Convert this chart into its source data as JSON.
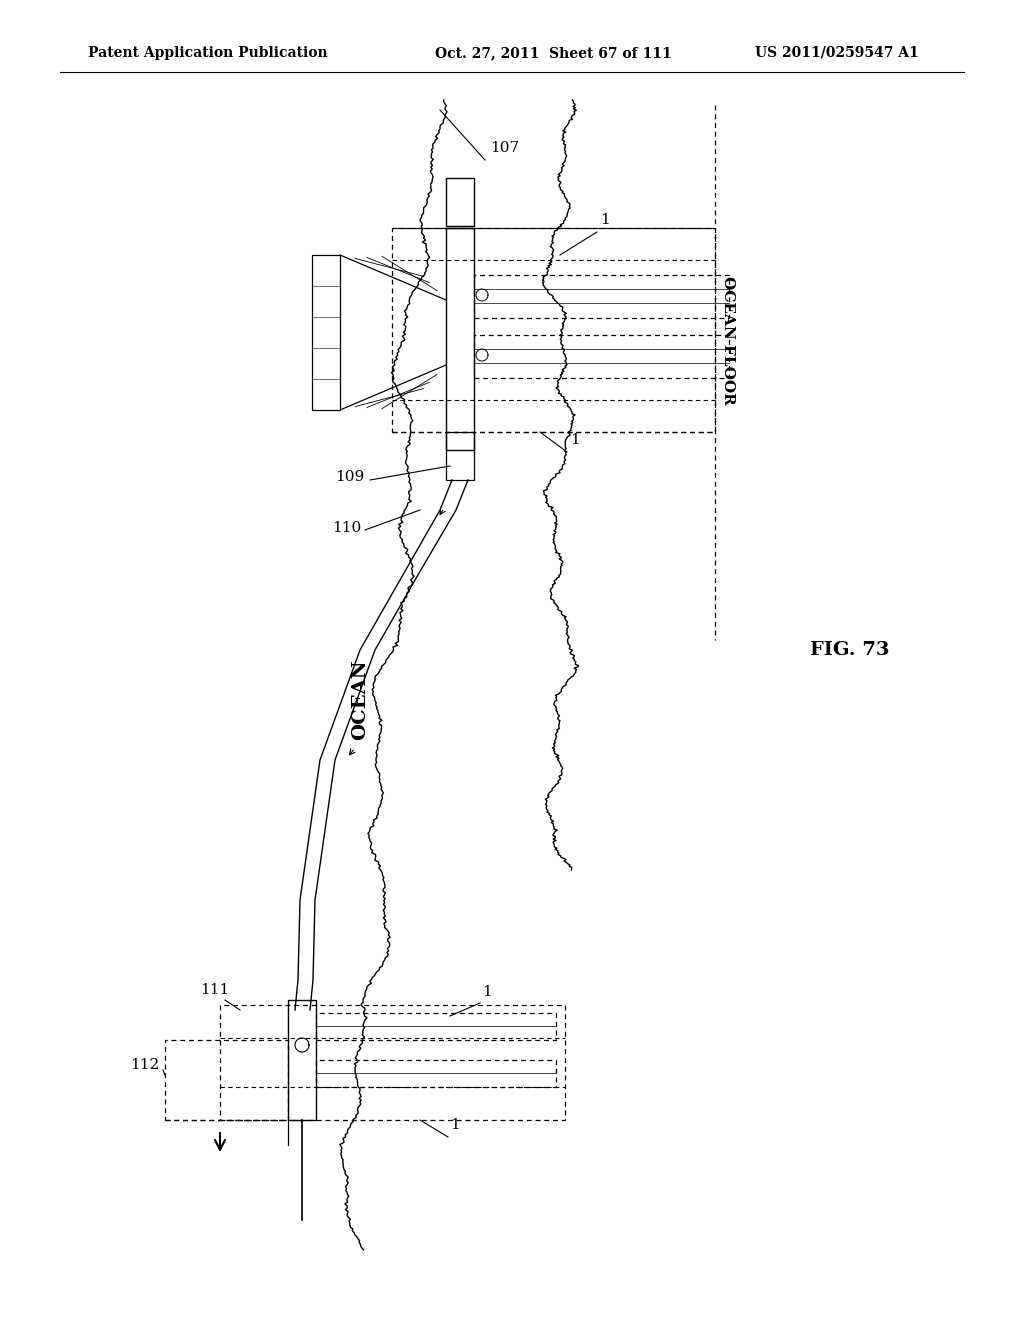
{
  "bg_color": "#ffffff",
  "text_color": "#000000",
  "header_left": "Patent Application Publication",
  "header_center": "Oct. 27, 2011  Sheet 67 of 111",
  "header_right": "US 2011/0259547 A1",
  "fig_label": "FIG. 73",
  "label_ocean": "OCEAN",
  "label_ocean_floor": "OCEAN FLOOR",
  "ref_107": "107",
  "ref_109": "109",
  "ref_110": "110",
  "ref_111": "111",
  "ref_112": "112",
  "ref_1": "1"
}
